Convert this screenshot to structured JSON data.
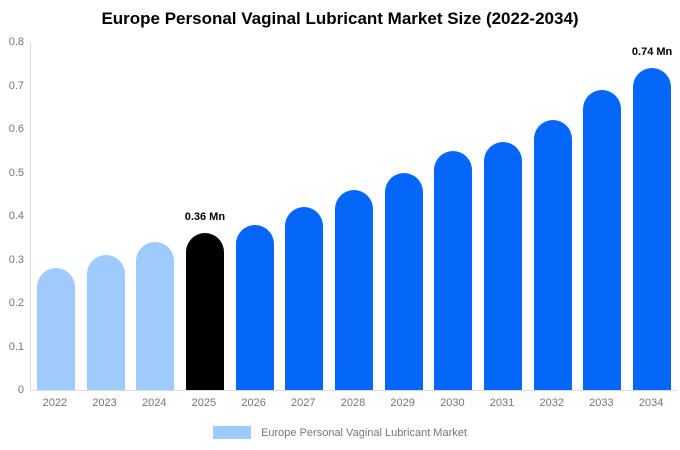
{
  "title": "Europe Personal Vaginal Lubricant Market Size (2022-2034)",
  "chart_data": {
    "type": "bar",
    "title": "Europe Personal Vaginal Lubricant Market Size (2022-2034)",
    "categories": [
      "2022",
      "2023",
      "2024",
      "2025",
      "2026",
      "2027",
      "2028",
      "2029",
      "2030",
      "2031",
      "2032",
      "2033",
      "2034"
    ],
    "values": [
      0.28,
      0.31,
      0.34,
      0.36,
      0.38,
      0.42,
      0.46,
      0.5,
      0.55,
      0.57,
      0.62,
      0.69,
      0.74
    ],
    "unit": "Mn",
    "point_labels": [
      null,
      null,
      null,
      "0.36 Mn",
      null,
      null,
      null,
      null,
      null,
      null,
      null,
      null,
      "0.74 Mn"
    ],
    "bar_colors": [
      "#9ecbfb",
      "#9ecbfb",
      "#9ecbfb",
      "#000000",
      "#0566fa",
      "#0566fa",
      "#0566fa",
      "#0566fa",
      "#0566fa",
      "#0566fa",
      "#0566fa",
      "#0566fa",
      "#0566fa"
    ],
    "xlabel": "",
    "ylabel": "",
    "ylim": [
      0,
      0.8
    ],
    "yticks": [
      "0",
      "0.1",
      "0.2",
      "0.3",
      "0.4",
      "0.5",
      "0.6",
      "0.7",
      "0.8"
    ],
    "grid": false,
    "legend_position": "bottom"
  },
  "legend": {
    "label": "Europe Personal Vaginal Lubricant Market",
    "swatch_color": "#9ecbfb"
  },
  "colors": {
    "light_blue": "#9ecbfb",
    "accent_blue": "#0566fa",
    "highlight_black": "#000000",
    "axis_line": "#dcdcdc",
    "tick_text": "#757575",
    "title_text": "#000000"
  }
}
